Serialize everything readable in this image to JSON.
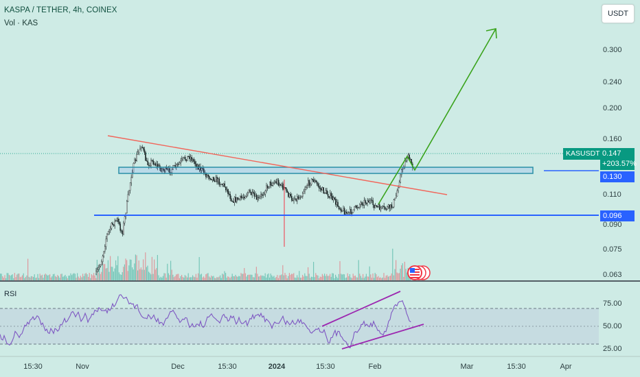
{
  "header": {
    "pair_title": "KASPA / TETHER, 4h, COINEX",
    "volume_title": "Vol · KAS",
    "currency_button": "USDT"
  },
  "price_axis": {
    "ticks": [
      "0.300",
      "0.240",
      "0.200",
      "0.160",
      "0.110",
      "0.090",
      "0.075",
      "0.063"
    ]
  },
  "price_tags": {
    "symbol": "KASUSDT",
    "last_price": "0.147",
    "change": "+203.57%",
    "resistance": "0.130",
    "support": "0.096"
  },
  "rsi": {
    "title": "RSI",
    "ticks": [
      "75.00",
      "50.00",
      "25.00"
    ]
  },
  "time_axis": {
    "ticks": [
      "15:30",
      "Nov",
      "Dec",
      "15:30",
      "2024",
      "15:30",
      "Feb",
      "Mar",
      "15:30",
      "Apr"
    ]
  },
  "colors": {
    "background": "#ceebe5",
    "up": "#089981",
    "down": "#f23645",
    "blue_line": "#2962ff",
    "trendline": "#f2655a",
    "projection_arrow": "#3aa31c",
    "rsi_line": "#7e57c2",
    "rsi_channel": "#9c27b0"
  },
  "icons": [
    "us-flag-event-icon"
  ]
}
